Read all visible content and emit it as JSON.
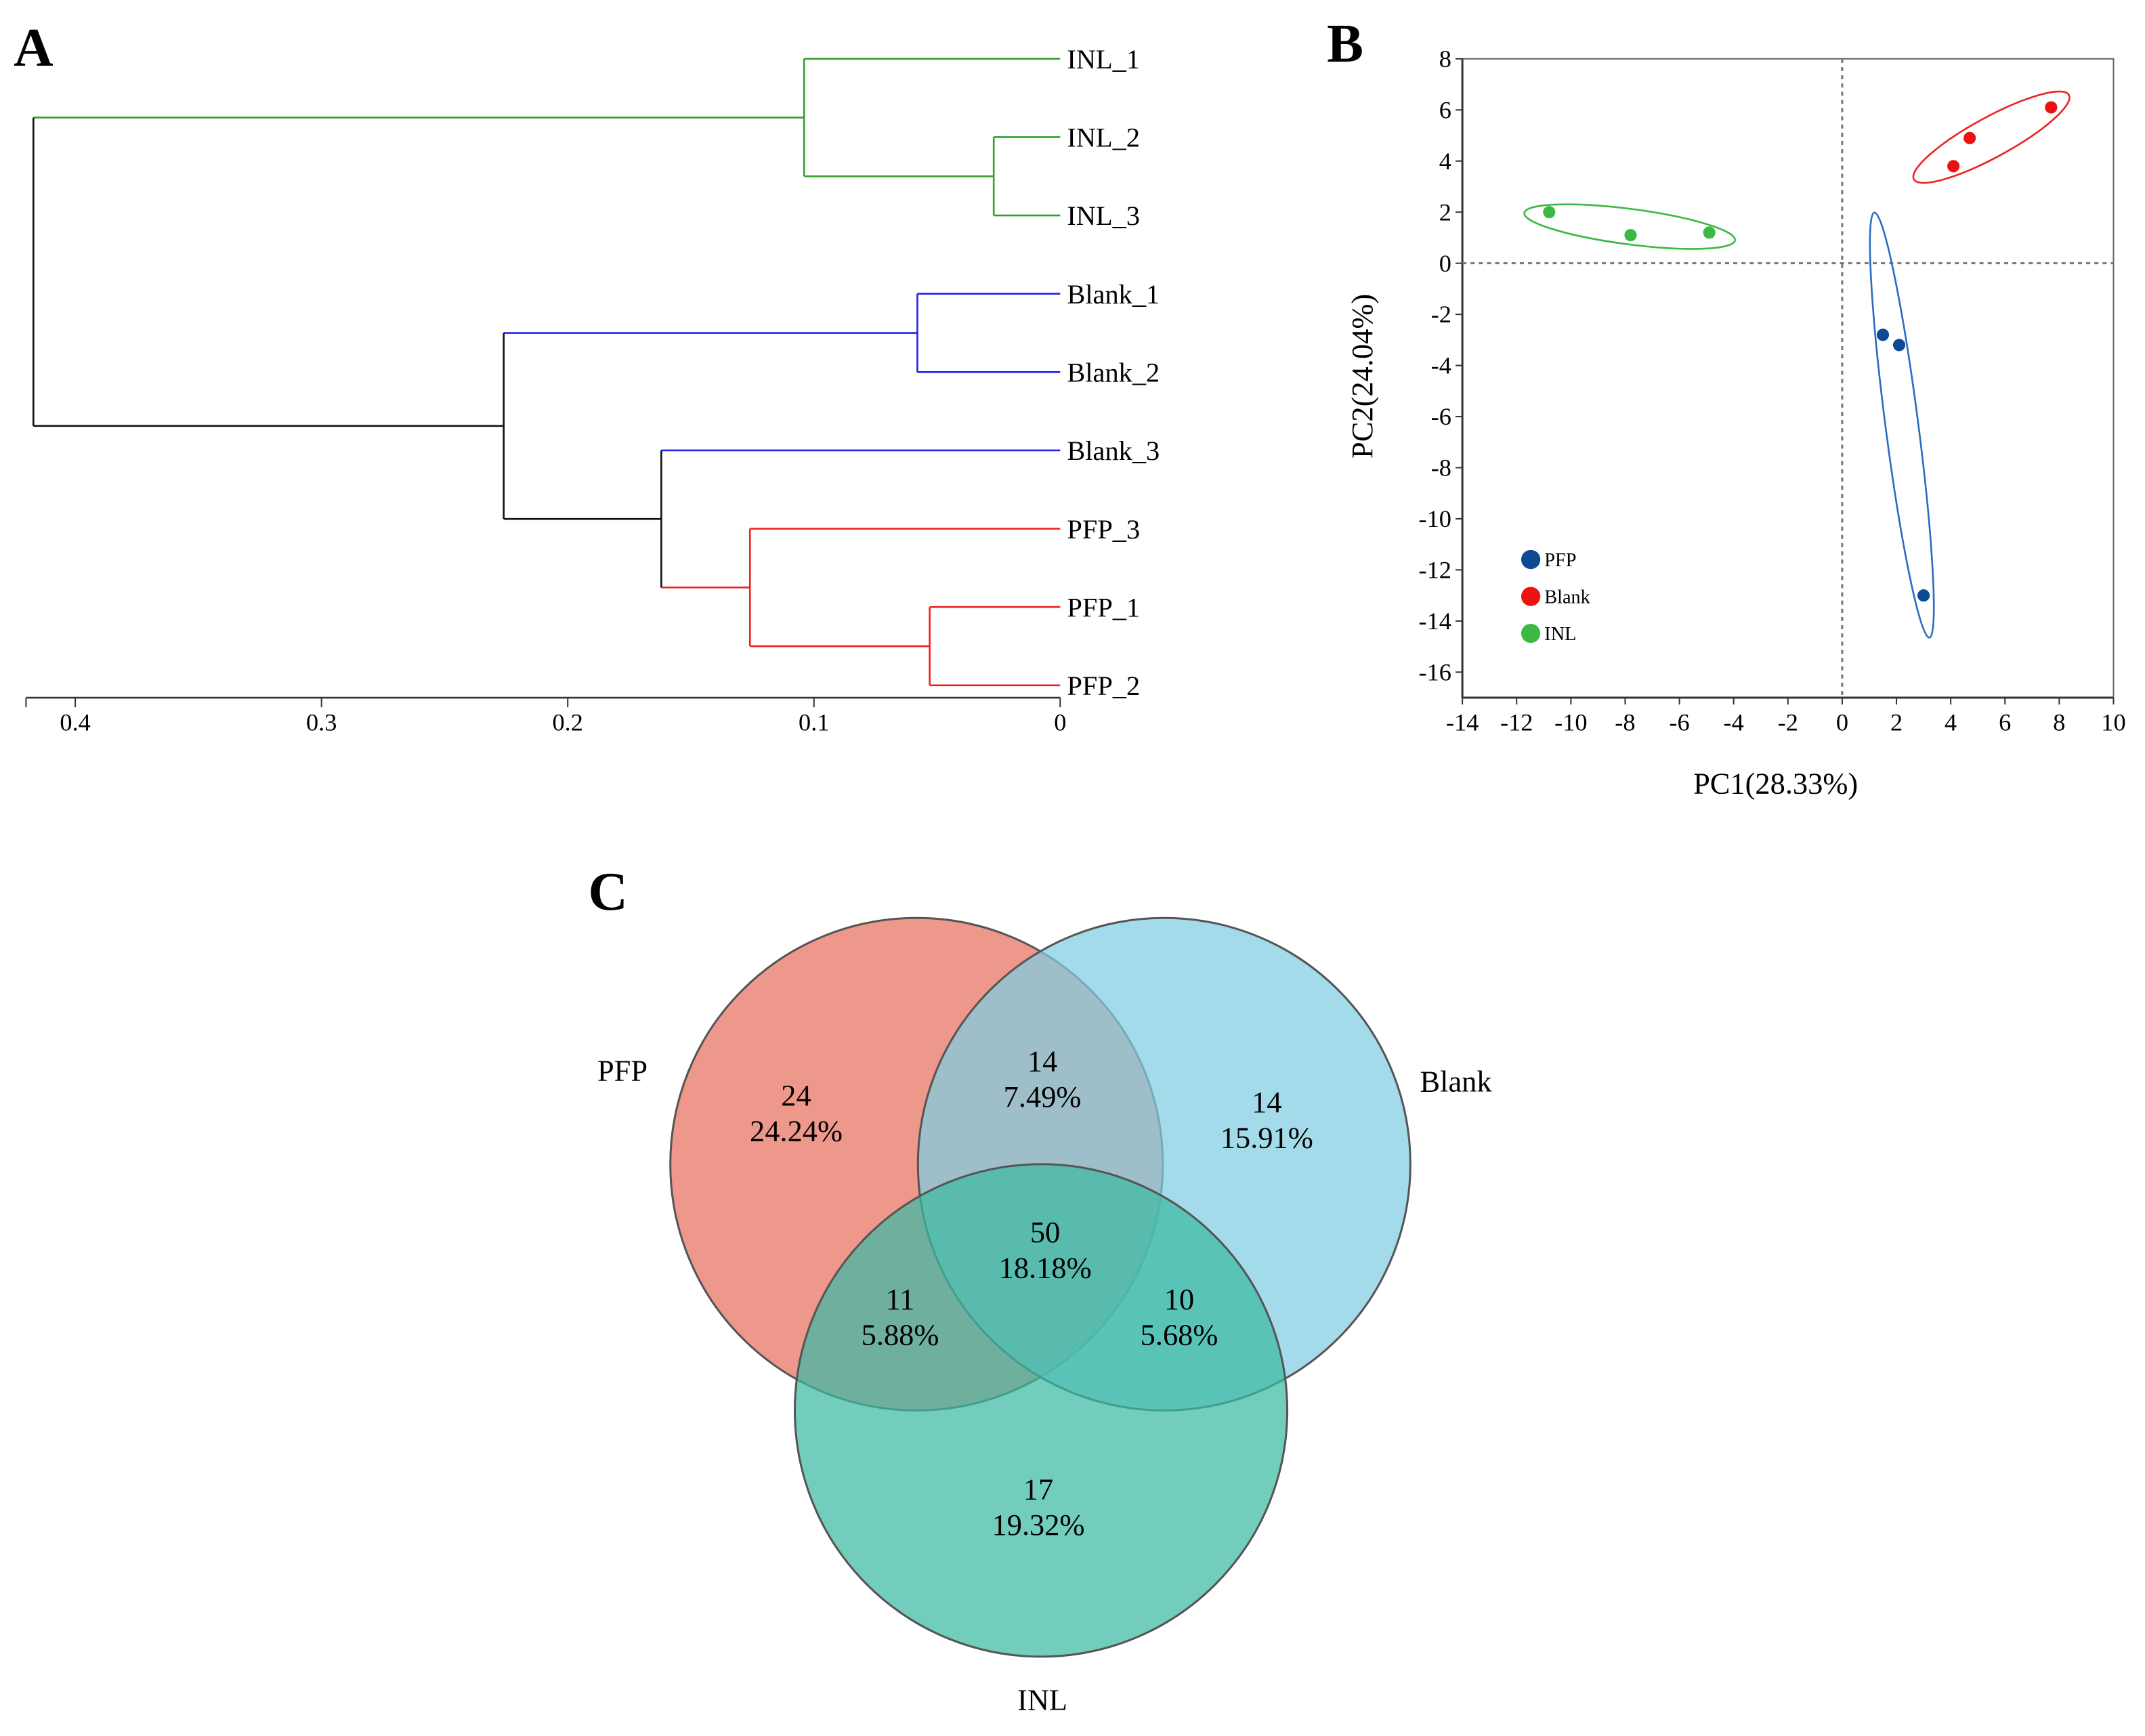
{
  "chart_data": [
    {
      "panel": "A",
      "type": "dendrogram",
      "axis_ticks": [
        "0.4",
        "0.3",
        "0.2",
        "0.1",
        "0"
      ],
      "xlim": [
        0.42,
        0
      ],
      "leaves": [
        "INL_1",
        "INL_2",
        "INL_3",
        "Blank_1",
        "Blank_2",
        "Blank_3",
        "PFP_3",
        "PFP_1",
        "PFP_2"
      ],
      "merges": [
        {
          "left": "INL_2",
          "right": "INL_3",
          "height": 0.027,
          "id": "m1",
          "color": "#33a02c"
        },
        {
          "left": "INL_1",
          "right": "m1",
          "height": 0.104,
          "id": "m2",
          "color": "#33a02c"
        },
        {
          "left": "Blank_1",
          "right": "Blank_2",
          "height": 0.058,
          "id": "m3",
          "color": "#2222ee"
        },
        {
          "left": "PFP_1",
          "right": "PFP_2",
          "height": 0.053,
          "id": "m4",
          "color": "#ee2222"
        },
        {
          "left": "PFP_3",
          "right": "m4",
          "height": 0.126,
          "id": "m5",
          "color": "#ee2222"
        },
        {
          "left": "Blank_3",
          "right": "m5",
          "height": 0.162,
          "id": "m6",
          "color": "#111111"
        },
        {
          "left": "m3",
          "right": "m6",
          "height": 0.226,
          "id": "m7",
          "color": "#111111"
        },
        {
          "left": "m2",
          "right": "m7",
          "height": 0.417,
          "id": "m8",
          "color": "#111111"
        }
      ],
      "leaf_colors": {
        "INL_1": "#33a02c",
        "INL_2": "#33a02c",
        "INL_3": "#33a02c",
        "Blank_1": "#2222ee",
        "Blank_2": "#2222ee",
        "Blank_3": "#2222ee",
        "PFP_3": "#ee2222",
        "PFP_1": "#ee2222",
        "PFP_2": "#ee2222"
      }
    },
    {
      "panel": "B",
      "type": "scatter",
      "xlabel": "PC1(28.33%)",
      "ylabel": "PC2(24.04%)",
      "xlim": [
        -14,
        10
      ],
      "ylim": [
        -17,
        8
      ],
      "xticks": [
        -14,
        -12,
        -10,
        -8,
        -6,
        -4,
        -2,
        0,
        2,
        4,
        6,
        8,
        10
      ],
      "yticks": [
        8,
        6,
        4,
        2,
        0,
        -2,
        -4,
        -6,
        -8,
        -10,
        -12,
        -14,
        -16
      ],
      "legend_position": "bottom-left",
      "series": [
        {
          "name": "PFP",
          "color": "#0d4a96",
          "ellipse_color": "#2b6cc4",
          "points": [
            [
              1.5,
              -2.8
            ],
            [
              2.1,
              -3.2
            ],
            [
              3.0,
              -13.0
            ]
          ]
        },
        {
          "name": "Blank",
          "color": "#ee1111",
          "ellipse_color": "#ee2222",
          "points": [
            [
              4.1,
              3.8
            ],
            [
              4.7,
              4.9
            ],
            [
              7.7,
              6.1
            ]
          ]
        },
        {
          "name": "INL",
          "color": "#3cb843",
          "ellipse_color": "#3cb843",
          "points": [
            [
              -10.8,
              2.0
            ],
            [
              -7.8,
              1.1
            ],
            [
              -4.9,
              1.2
            ]
          ]
        }
      ]
    },
    {
      "panel": "C",
      "type": "venn",
      "sets": [
        {
          "name": "PFP",
          "color": "#e8705f"
        },
        {
          "name": "Blank",
          "color": "#7fcde2"
        },
        {
          "name": "INL",
          "color": "#3dbaa4"
        }
      ],
      "regions": [
        {
          "sets": [
            "PFP"
          ],
          "count": "24",
          "percent": "24.24%"
        },
        {
          "sets": [
            "PFP",
            "Blank"
          ],
          "count": "14",
          "percent": "7.49%"
        },
        {
          "sets": [
            "Blank"
          ],
          "count": "14",
          "percent": "15.91%"
        },
        {
          "sets": [
            "PFP",
            "Blank",
            "INL"
          ],
          "count": "50",
          "percent": "18.18%"
        },
        {
          "sets": [
            "PFP",
            "INL"
          ],
          "count": "11",
          "percent": "5.88%"
        },
        {
          "sets": [
            "Blank",
            "INL"
          ],
          "count": "10",
          "percent": "5.68%"
        },
        {
          "sets": [
            "INL"
          ],
          "count": "17",
          "percent": "19.32%"
        }
      ]
    }
  ]
}
